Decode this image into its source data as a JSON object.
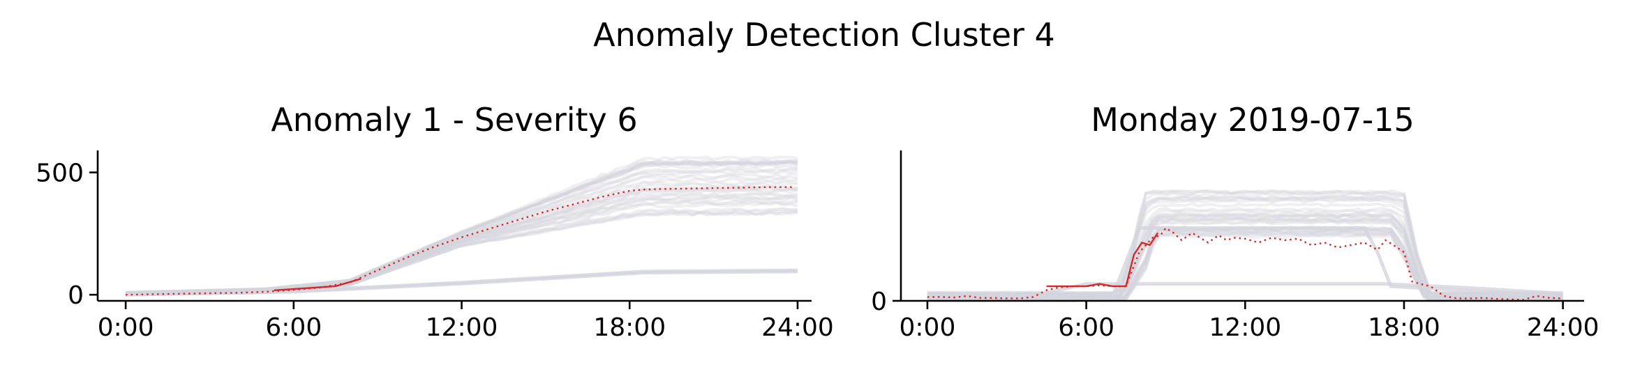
{
  "title": "Anomaly Detection Cluster 4",
  "colors": {
    "background_lines": "#d4d4de",
    "highlight": "#d62728",
    "axis": "#000000"
  },
  "chart_data": [
    {
      "type": "line",
      "title": "Anomaly 1 - Severity 6",
      "xlabel": "",
      "ylabel": "",
      "xlim": [
        -1,
        24.5
      ],
      "ylim": [
        -25,
        590
      ],
      "x_ticks": [
        0,
        6,
        12,
        18,
        24
      ],
      "x_tick_labels": [
        "0:00",
        "6:00",
        "12:00",
        "18:00",
        "24:00"
      ],
      "y_ticks": [
        0,
        500
      ],
      "y_tick_labels": [
        "0",
        "500"
      ],
      "grid": false,
      "background_series": {
        "description_of_band": "many grey traces",
        "upper_envelope": {
          "x": [
            0,
            5,
            8,
            12,
            18.5,
            24
          ],
          "y": [
            10,
            25,
            60,
            260,
            560,
            565
          ]
        },
        "lower_envelope": {
          "x": [
            0,
            5,
            8,
            12,
            18.5,
            24
          ],
          "y": [
            0,
            8,
            40,
            200,
            330,
            335
          ]
        },
        "low_traces": [
          {
            "x": [
              0,
              6,
              12,
              18.5,
              24
            ],
            "y": [
              0,
              15,
              50,
              95,
              100
            ]
          },
          {
            "x": [
              0,
              6,
              12,
              18.5,
              24
            ],
            "y": [
              0,
              12,
              45,
              90,
              95
            ]
          }
        ]
      },
      "highlight_observed": {
        "x": [
          5.3,
          7.5,
          8.4
        ],
        "y": [
          18,
          35,
          65
        ]
      },
      "highlight_expected": {
        "x": [
          0,
          1,
          2,
          3,
          4,
          5,
          6,
          7,
          8,
          9,
          10,
          11,
          12,
          13,
          14,
          15,
          16,
          17,
          18,
          18.5,
          19,
          20,
          21,
          22,
          23,
          23.8
        ],
        "y": [
          0,
          2,
          4,
          6,
          8,
          12,
          20,
          30,
          50,
          100,
          150,
          195,
          235,
          270,
          305,
          340,
          370,
          400,
          425,
          430,
          432,
          434,
          436,
          438,
          440,
          440
        ]
      }
    },
    {
      "type": "line",
      "title": "Monday 2019-07-15",
      "xlabel": "",
      "ylabel": "",
      "xlim": [
        -1,
        24.8
      ],
      "ylim": [
        0,
        310
      ],
      "x_ticks": [
        0,
        6,
        12,
        18,
        24
      ],
      "x_tick_labels": [
        "0:00",
        "6:00",
        "12:00",
        "18:00",
        "24:00"
      ],
      "y_ticks": [
        0
      ],
      "y_tick_labels": [
        "0"
      ],
      "grid": false,
      "background_series": {
        "description_of_band": "many grey traces",
        "upper_envelope": {
          "x": [
            0,
            7.2,
            7.7,
            8.2,
            18.0,
            18.5,
            19.0,
            24
          ],
          "y": [
            18,
            18,
            100,
            230,
            230,
            100,
            18,
            18
          ]
        },
        "lower_envelope": {
          "x": [
            0,
            7.5,
            8.3,
            8.6,
            17.5,
            18.2,
            18.8,
            24
          ],
          "y": [
            0,
            0,
            60,
            130,
            130,
            60,
            0,
            0
          ]
        },
        "low_traces": [
          {
            "x": [
              0,
              4,
              6,
              7.5,
              16.5,
              17.2,
              20,
              24
            ],
            "y": [
              8,
              10,
              35,
              35,
              35,
              35,
              28,
              15
            ]
          },
          {
            "x": [
              0,
              7,
              8,
              16.5,
              17.0,
              17.5,
              24
            ],
            "y": [
              5,
              10,
              150,
              150,
              100,
              30,
              10
            ]
          }
        ]
      },
      "highlight_observed": {
        "x": [
          4.5,
          5,
          5.5,
          6,
          6.5,
          7,
          7.5,
          7.8,
          8.1,
          8.4,
          8.7
        ],
        "y": [
          30,
          30,
          30,
          30,
          35,
          30,
          30,
          95,
          120,
          115,
          140
        ]
      },
      "highlight_expected": {
        "x": [
          0,
          0.5,
          1,
          1.5,
          2,
          2.5,
          3,
          3.5,
          4,
          4.5,
          5,
          5.5,
          6,
          6.5,
          7,
          7.5,
          8,
          8.5,
          8.8,
          9,
          9.3,
          9.6,
          10,
          10.3,
          10.6,
          11,
          11.3,
          11.6,
          12,
          12.5,
          13,
          13.5,
          14,
          14.5,
          15,
          15.5,
          16,
          16.5,
          17,
          17.3,
          17.6,
          18,
          18.3,
          18.6,
          19,
          19.5,
          20,
          20.5,
          21,
          21.5,
          22,
          22.5,
          23,
          23.5,
          24
        ],
        "y": [
          8,
          8,
          7,
          10,
          6,
          6,
          5,
          5,
          8,
          22,
          28,
          30,
          30,
          32,
          30,
          30,
          100,
          130,
          135,
          150,
          140,
          125,
          140,
          130,
          120,
          135,
          125,
          130,
          128,
          120,
          130,
          125,
          128,
          115,
          120,
          110,
          115,
          120,
          105,
          125,
          115,
          100,
          40,
          35,
          30,
          10,
          5,
          5,
          6,
          4,
          3,
          2,
          10,
          6,
          5
        ]
      }
    }
  ]
}
